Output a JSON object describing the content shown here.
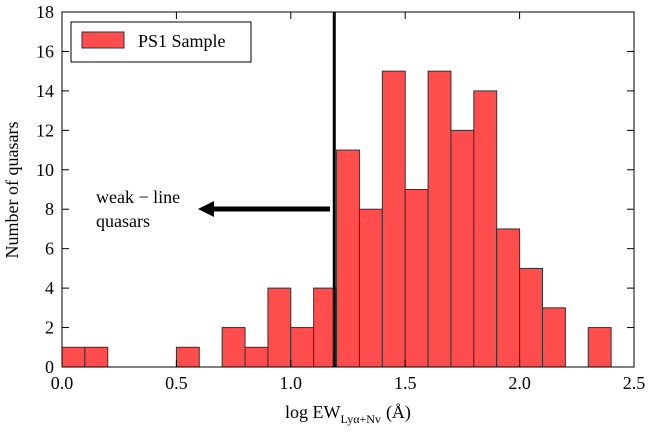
{
  "chart_data": {
    "type": "histogram",
    "bins": [
      0,
      0.1,
      0.2,
      0.3,
      0.4,
      0.5,
      0.6,
      0.7,
      0.8,
      0.9,
      1.0,
      1.1,
      1.2,
      1.3,
      1.4,
      1.5,
      1.6,
      1.7,
      1.8,
      1.9,
      2.0,
      2.1,
      2.2,
      2.3,
      2.4
    ],
    "series": [
      {
        "name": "PS1 Sample",
        "color": "#ff4c4c",
        "values": [
          1,
          1,
          0,
          0,
          0,
          1,
          0,
          2,
          1,
          4,
          2,
          4,
          11,
          8,
          15,
          9,
          15,
          12,
          14,
          7,
          5,
          3,
          0,
          2
        ]
      }
    ],
    "xlim": [
      0,
      2.5
    ],
    "xticks": [
      {
        "value": 0,
        "label": "0.0"
      },
      0.5,
      {
        "value": 1,
        "label": "1.0"
      },
      1.5,
      {
        "value": 2,
        "label": "2.0"
      },
      2.5
    ],
    "ylim": [
      0,
      18
    ],
    "yticks": [
      0,
      2,
      4,
      6,
      8,
      10,
      12,
      14,
      16,
      18
    ],
    "xlabel": "log EW",
    "xlabel_sub": "Lyα+Nv",
    "xlabel_unit": "(Å)",
    "ylabel": "Number of quasars",
    "vline": 1.19,
    "annotation": [
      "weak − line",
      "quasars"
    ],
    "legend": "upper left"
  }
}
